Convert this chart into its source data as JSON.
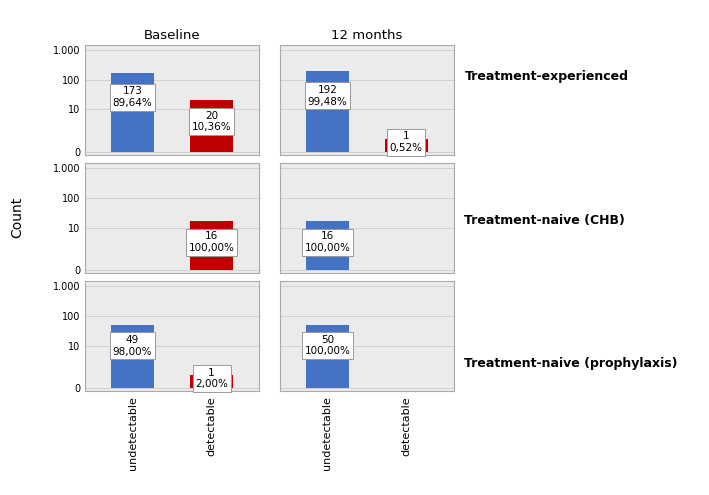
{
  "col_titles": [
    "Baseline",
    "12 months"
  ],
  "row_labels": [
    "Treatment-experienced",
    "Treatment-naive (CHB)",
    "Treatment-naive (prophylaxis)"
  ],
  "ylabel": "Count",
  "x_tick_labels": [
    "undetectable",
    "detectable"
  ],
  "bar_colors": [
    "#4472C4",
    "#C00000"
  ],
  "background_color": "#EBEBEB",
  "data": [
    {
      "row": 0,
      "col": 0,
      "undetectable": 173,
      "detectable": 20,
      "undetectable_pct": "89,64%",
      "detectable_pct": "10,36%"
    },
    {
      "row": 0,
      "col": 1,
      "undetectable": 192,
      "detectable": 1,
      "undetectable_pct": "99,48%",
      "detectable_pct": "0,52%"
    },
    {
      "row": 1,
      "col": 0,
      "undetectable": 0,
      "detectable": 16,
      "undetectable_pct": null,
      "detectable_pct": "100,00%"
    },
    {
      "row": 1,
      "col": 1,
      "undetectable": 16,
      "detectable": 0,
      "undetectable_pct": "100,00%",
      "detectable_pct": null
    },
    {
      "row": 2,
      "col": 0,
      "undetectable": 49,
      "detectable": 1,
      "undetectable_pct": "98,00%",
      "detectable_pct": "2,00%"
    },
    {
      "row": 2,
      "col": 1,
      "undetectable": 50,
      "detectable": 0,
      "undetectable_pct": "100,00%",
      "detectable_pct": null
    }
  ],
  "yticks": [
    0,
    10,
    100,
    1000
  ],
  "ytick_labels": [
    "0",
    "10",
    "100",
    "1.000"
  ],
  "grid_color": "#CCCCCC",
  "annotation_fontsize": 7.5,
  "bar_width": 0.55,
  "outer_border_color": "#AAAAAA"
}
